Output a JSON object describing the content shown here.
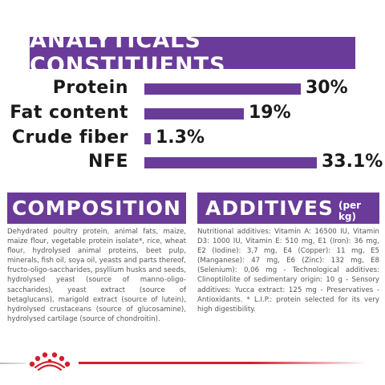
{
  "header": {
    "title": "ANALYTICALS CONSTITUENTS"
  },
  "constituents": [
    {
      "label": "Protein",
      "value": "30%",
      "fraction": 0.3
    },
    {
      "label": "Fat content",
      "value": "19%",
      "fraction": 0.19
    },
    {
      "label": "Crude fiber",
      "value": "1.3%",
      "fraction": 0.013
    },
    {
      "label": "NFE",
      "value": "33.1%",
      "fraction": 0.331
    }
  ],
  "composition": {
    "title": "COMPOSITION",
    "text": "Dehydrated poultry protein, animal fats, maize, maize flour, vegetable protein isolate*, rice, wheat flour, hydrolysed animal proteins, beet pulp, minerals, fish oil, soya oil, yeasts and parts thereof, fructo-oligo-saccharides, psyllium husks and seeds, hydrolysed yeast (source of manno-oligo-saccharides), yeast extract (source of betaglucans), marigold extract (source of lutein), hydrolysed crustaceans (source of glucosamine), hydrolysed cartilage (source of chondroitin)."
  },
  "additives": {
    "title": "ADDITIVES",
    "subtitle": "(per kg)",
    "text": "Nutritional additives: Vitamin A: 16500 IU, Vitamin D3: 1000 IU, Vitamin E: 510 mg, E1 (Iron): 36 mg, E2 (Iodine): 3,7 mg, E4 (Copper): 11 mg, E5 (Manganese): 47 mg, E6 (Zinc): 132 mg, E8 (Selenium): 0,06 mg - Technological additives: Clinoptilolite of sedimentary origin: 10 g - Sensory additives: Yucca extract: 125 mg - Preservatives - Antioxidants. * L.I.P.: protein selected for its very high digestibility."
  },
  "colors": {
    "accent": "#6a3b98",
    "brand_red": "#d21f2b"
  },
  "footer": {
    "logo_icon": "royal-canin-crown-icon"
  }
}
